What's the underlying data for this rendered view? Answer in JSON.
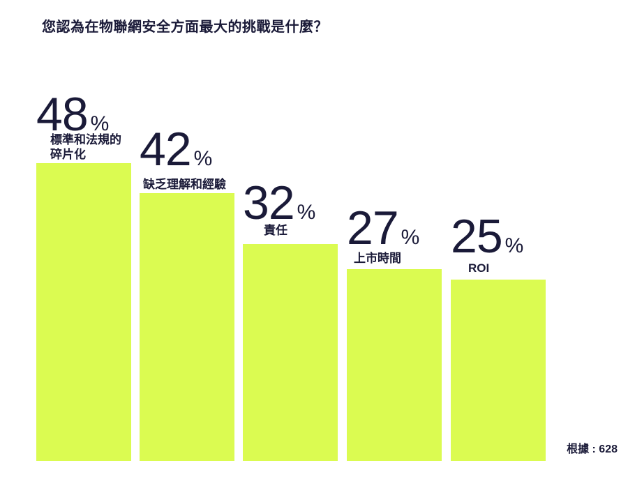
{
  "title": "您認為在物聯網安全方面最大的挑戰是什麼？",
  "footnote": "根據 : 628",
  "colors": {
    "bar": "#DBFB51",
    "text": "#1A1A38",
    "background": "#FFFFFF"
  },
  "chart_data": {
    "type": "bar",
    "title": "您認為在物聯網安全方面最大的挑戰是什麼？",
    "categories": [
      "標準和法規的碎片化",
      "缺乏理解和經驗",
      "責任",
      "上市時間",
      "ROI"
    ],
    "values": [
      48,
      42,
      32,
      27,
      25
    ],
    "unit": "%",
    "ylim": [
      0,
      50
    ],
    "grid": false,
    "legend": "none",
    "axes_visible": false,
    "value_labels_position": "above-bar",
    "base_note": "根據 : 628",
    "base_n": 628
  },
  "bars": [
    {
      "value": "48",
      "suffix": "%",
      "label_lines": [
        "標準和法規的",
        "碎片化"
      ]
    },
    {
      "value": "42",
      "suffix": "%",
      "label_lines": [
        "缺乏理解和經驗"
      ]
    },
    {
      "value": "32",
      "suffix": "%",
      "label_lines": [
        "責任"
      ]
    },
    {
      "value": "27",
      "suffix": "%",
      "label_lines": [
        "上市時間"
      ]
    },
    {
      "value": "25",
      "suffix": "%",
      "label_lines": [
        "ROI"
      ]
    }
  ]
}
